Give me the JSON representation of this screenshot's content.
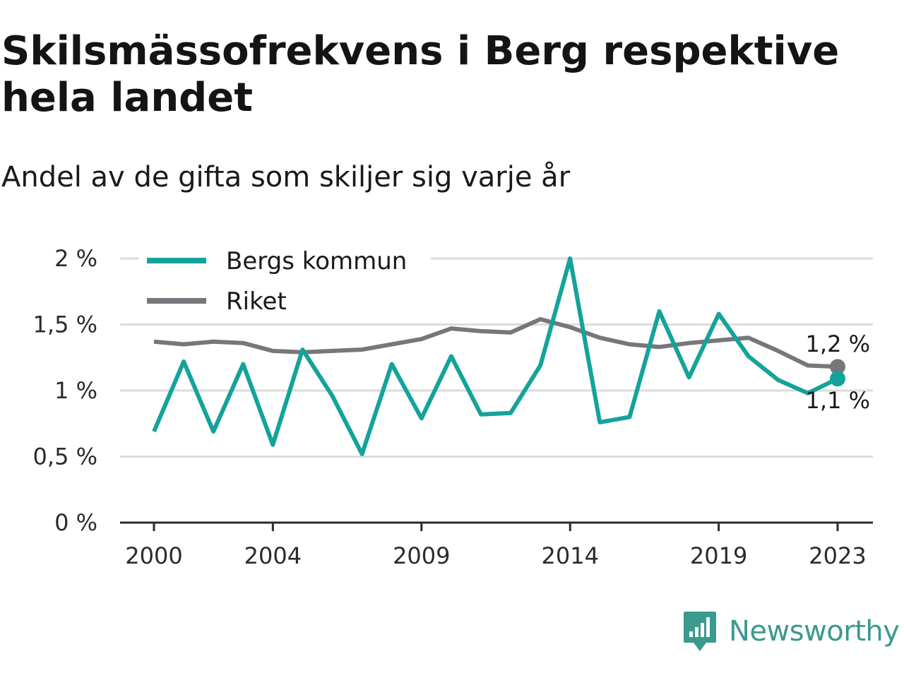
{
  "title": "Skilsmässofrekvens i Berg respektive hela landet",
  "subtitle": "Andel av de gifta som skiljer sig varje år",
  "brand": {
    "name": "Newsworthy",
    "icon": "newsworthy-logo-icon",
    "color": "#3a9a8e"
  },
  "chart_data": {
    "type": "line",
    "x": [
      2000,
      2001,
      2002,
      2003,
      2004,
      2005,
      2006,
      2007,
      2008,
      2009,
      2010,
      2011,
      2012,
      2013,
      2014,
      2015,
      2016,
      2017,
      2018,
      2019,
      2020,
      2021,
      2022,
      2023
    ],
    "x_tick_values": [
      2000,
      2004,
      2009,
      2014,
      2019,
      2023
    ],
    "x_tick_labels": [
      "2000",
      "2004",
      "2009",
      "2014",
      "2019",
      "2023"
    ],
    "ylim": [
      0,
      2
    ],
    "y_tick_values": [
      0,
      0.5,
      1,
      1.5,
      2
    ],
    "y_tick_labels": [
      "0 %",
      "0,5 %",
      "1 %",
      "1,5 %",
      "2 %"
    ],
    "grid": true,
    "legend_position": "top-left",
    "series": [
      {
        "name": "Bergs kommun",
        "color": "#14a39a",
        "values": [
          0.69,
          1.22,
          0.69,
          1.2,
          0.59,
          1.31,
          0.96,
          0.52,
          1.2,
          0.79,
          1.26,
          0.82,
          0.83,
          1.19,
          2.0,
          0.76,
          0.8,
          1.6,
          1.1,
          1.58,
          1.26,
          1.08,
          0.98,
          1.09
        ],
        "end_label": "1,1 %"
      },
      {
        "name": "Riket",
        "color": "#77767b",
        "values": [
          1.37,
          1.35,
          1.37,
          1.36,
          1.3,
          1.29,
          1.3,
          1.31,
          1.35,
          1.39,
          1.47,
          1.45,
          1.44,
          1.54,
          1.48,
          1.4,
          1.35,
          1.33,
          1.36,
          1.38,
          1.4,
          1.3,
          1.19,
          1.18
        ],
        "end_label": "1,2 %"
      }
    ]
  }
}
